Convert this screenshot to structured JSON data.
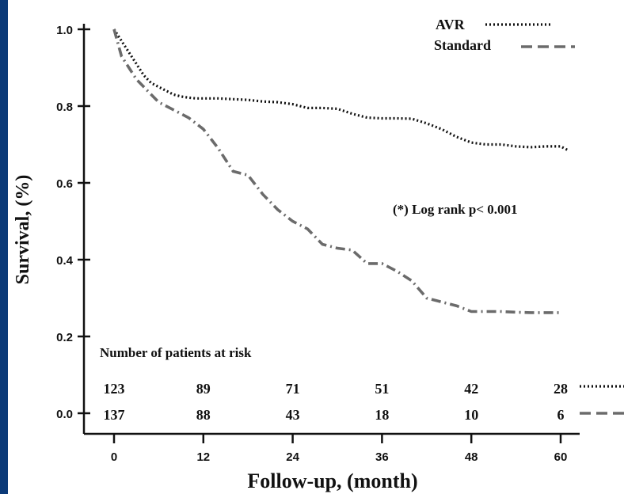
{
  "colors": {
    "frame": "#0b3a78",
    "background": "#ffffff",
    "avr_line": "#111111",
    "standard_line": "#6b6b6b",
    "axis": "#111111"
  },
  "chart_data": {
    "type": "line",
    "xlabel": "Follow-up,  (month)",
    "ylabel": "Survival, (%)",
    "xlim": [
      0,
      60
    ],
    "ylim": [
      0,
      1.0
    ],
    "xticks": [
      "0",
      "12",
      "24",
      "36",
      "48",
      "60"
    ],
    "yticks": [
      "0.0",
      "0.2",
      "0.4",
      "0.6",
      "0.8",
      "1.0"
    ],
    "grid": false,
    "legend_position": "top-right",
    "annotation": "(*) Log rank p< 0.001",
    "series": [
      {
        "name": "AVR",
        "style": "dotted",
        "x": [
          0,
          1,
          2,
          3,
          4,
          5,
          6,
          7,
          8,
          9,
          10,
          11,
          12,
          14,
          16,
          18,
          20,
          22,
          24,
          26,
          28,
          30,
          32,
          34,
          36,
          38,
          40,
          42,
          44,
          46,
          48,
          50,
          52,
          54,
          56,
          58,
          60,
          61
        ],
        "y": [
          1.0,
          0.97,
          0.94,
          0.91,
          0.88,
          0.86,
          0.85,
          0.84,
          0.83,
          0.825,
          0.822,
          0.82,
          0.82,
          0.82,
          0.818,
          0.816,
          0.812,
          0.81,
          0.805,
          0.795,
          0.795,
          0.793,
          0.78,
          0.77,
          0.768,
          0.768,
          0.767,
          0.755,
          0.74,
          0.72,
          0.705,
          0.7,
          0.7,
          0.695,
          0.693,
          0.695,
          0.695,
          0.685
        ]
      },
      {
        "name": "Standard",
        "style": "dash-dot",
        "x": [
          0,
          1,
          2,
          3,
          4,
          5,
          6,
          8,
          10,
          12,
          14,
          16,
          18,
          20,
          22,
          24,
          26,
          28,
          30,
          32,
          34,
          36,
          38,
          40,
          42,
          44,
          46,
          48,
          50,
          52,
          54,
          56,
          58,
          60
        ],
        "y": [
          1.0,
          0.93,
          0.9,
          0.87,
          0.85,
          0.83,
          0.81,
          0.79,
          0.77,
          0.74,
          0.69,
          0.63,
          0.62,
          0.57,
          0.53,
          0.5,
          0.48,
          0.44,
          0.43,
          0.425,
          0.39,
          0.39,
          0.37,
          0.345,
          0.3,
          0.29,
          0.28,
          0.265,
          0.265,
          0.265,
          0.263,
          0.262,
          0.262,
          0.262
        ]
      }
    ],
    "risk_table": {
      "title": "Number of patients at risk",
      "avr": [
        "123",
        "89",
        "71",
        "51",
        "42",
        "28"
      ],
      "standard": [
        "137",
        "88",
        "43",
        "18",
        "10",
        "6"
      ]
    }
  }
}
